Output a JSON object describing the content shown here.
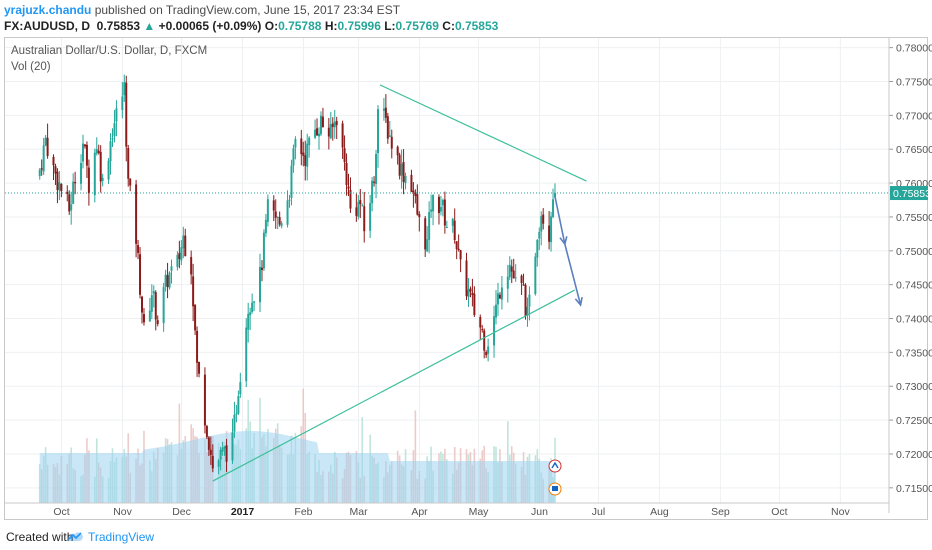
{
  "header": {
    "user": "yrajuzk.chandu",
    "published_text": "published on TradingView.com, June 15, 2017 23:34 EST",
    "symbol": "FX:AUDUSD, D",
    "last": "0.75853",
    "change": "+0.00065 (+0.09%)",
    "o_label": "O:",
    "o": "0.75788",
    "h_label": "H:",
    "h": "0.75996",
    "l_label": "L:",
    "l": "0.75769",
    "c_label": "C:",
    "c": "0.75853"
  },
  "legend": {
    "main": "Australian Dollar/U.S. Dollar, D, FXCM",
    "volume": "Vol (20)"
  },
  "footer": {
    "created_with": "Created with",
    "brand": "TradingView"
  },
  "colors": {
    "up": "#26a69a",
    "down": "#8b1a1a",
    "trendline": "#3cbf9c",
    "arrow": "#5b7fbf",
    "price_tag": "#26a69a",
    "volume": "#9ed3f0"
  },
  "chart_data": {
    "type": "candlestick",
    "symbol": "AUDUSD",
    "timeframe": "D",
    "ylim": [
      0.713,
      0.7815
    ],
    "yticks": [
      "0.78000",
      "0.77500",
      "0.77000",
      "0.76500",
      "0.76000",
      "0.75500",
      "0.75000",
      "0.74500",
      "0.74000",
      "0.73500",
      "0.73000",
      "0.72500",
      "0.72000",
      "0.71500"
    ],
    "xticks": [
      "Oct",
      "Nov",
      "Dec",
      "2017",
      "Feb",
      "Mar",
      "Apr",
      "May",
      "Jun",
      "Jul",
      "Aug",
      "Sep",
      "Oct",
      "Nov"
    ],
    "last_price": "0.75853",
    "price_anchors": [
      [
        "2016-09-26",
        0.762
      ],
      [
        "2016-09-29",
        0.7665
      ],
      [
        "2016-10-03",
        0.762
      ],
      [
        "2016-10-07",
        0.759
      ],
      [
        "2016-10-11",
        0.756
      ],
      [
        "2016-10-14",
        0.761
      ],
      [
        "2016-10-18",
        0.766
      ],
      [
        "2016-10-21",
        0.76
      ],
      [
        "2016-10-25",
        0.766
      ],
      [
        "2016-10-28",
        0.76
      ],
      [
        "2016-11-02",
        0.768
      ],
      [
        "2016-11-08",
        0.774
      ],
      [
        "2016-11-10",
        0.76
      ],
      [
        "2016-11-14",
        0.752
      ],
      [
        "2016-11-18",
        0.738
      ],
      [
        "2016-11-22",
        0.744
      ],
      [
        "2016-11-25",
        0.74
      ],
      [
        "2016-11-30",
        0.746
      ],
      [
        "2016-12-05",
        0.748
      ],
      [
        "2016-12-08",
        0.752
      ],
      [
        "2016-12-12",
        0.748
      ],
      [
        "2016-12-15",
        0.733
      ],
      [
        "2016-12-20",
        0.724
      ],
      [
        "2016-12-23",
        0.718
      ],
      [
        "2016-12-28",
        0.72
      ],
      [
        "2017-01-02",
        0.7215
      ],
      [
        "2017-01-05",
        0.73
      ],
      [
        "2017-01-10",
        0.742
      ],
      [
        "2017-01-16",
        0.746
      ],
      [
        "2017-01-20",
        0.756
      ],
      [
        "2017-01-26",
        0.754
      ],
      [
        "2017-01-31",
        0.759
      ],
      [
        "2017-02-03",
        0.766
      ],
      [
        "2017-02-08",
        0.764
      ],
      [
        "2017-02-13",
        0.768
      ],
      [
        "2017-02-16",
        0.769
      ],
      [
        "2017-02-21",
        0.767
      ],
      [
        "2017-02-24",
        0.77
      ],
      [
        "2017-03-01",
        0.761
      ],
      [
        "2017-03-03",
        0.756
      ],
      [
        "2017-03-08",
        0.757
      ],
      [
        "2017-03-10",
        0.753
      ],
      [
        "2017-03-15",
        0.761
      ],
      [
        "2017-03-17",
        0.771
      ],
      [
        "2017-03-21",
        0.769
      ],
      [
        "2017-03-24",
        0.766
      ],
      [
        "2017-03-29",
        0.762
      ],
      [
        "2017-04-03",
        0.76
      ],
      [
        "2017-04-07",
        0.754
      ],
      [
        "2017-04-11",
        0.751
      ],
      [
        "2017-04-13",
        0.757
      ],
      [
        "2017-04-18",
        0.757
      ],
      [
        "2017-04-21",
        0.754
      ],
      [
        "2017-04-25",
        0.753
      ],
      [
        "2017-04-28",
        0.747
      ],
      [
        "2017-05-03",
        0.743
      ],
      [
        "2017-05-05",
        0.741
      ],
      [
        "2017-05-09",
        0.738
      ],
      [
        "2017-05-11",
        0.736
      ],
      [
        "2017-05-15",
        0.74
      ],
      [
        "2017-05-19",
        0.746
      ],
      [
        "2017-05-23",
        0.748
      ],
      [
        "2017-05-26",
        0.745
      ],
      [
        "2017-05-30",
        0.744
      ],
      [
        "2017-06-01",
        0.74
      ],
      [
        "2017-06-02",
        0.742
      ],
      [
        "2017-06-06",
        0.753
      ],
      [
        "2017-06-08",
        0.756
      ],
      [
        "2017-06-12",
        0.753
      ],
      [
        "2017-06-14",
        0.759
      ],
      [
        "2017-06-15",
        0.75853
      ]
    ],
    "drawings": {
      "resistance_line": [
        [
          "2017-03-18",
          0.7745
        ],
        [
          "2017-07-01",
          0.7603
        ]
      ],
      "support_line": [
        [
          "2016-12-23",
          0.716
        ],
        [
          "2017-06-25",
          0.7442
        ]
      ],
      "projection_arrow": [
        [
          "2017-06-15",
          0.758
        ],
        [
          "2017-06-20",
          0.751
        ],
        [
          "2017-06-28",
          0.742
        ]
      ]
    }
  }
}
